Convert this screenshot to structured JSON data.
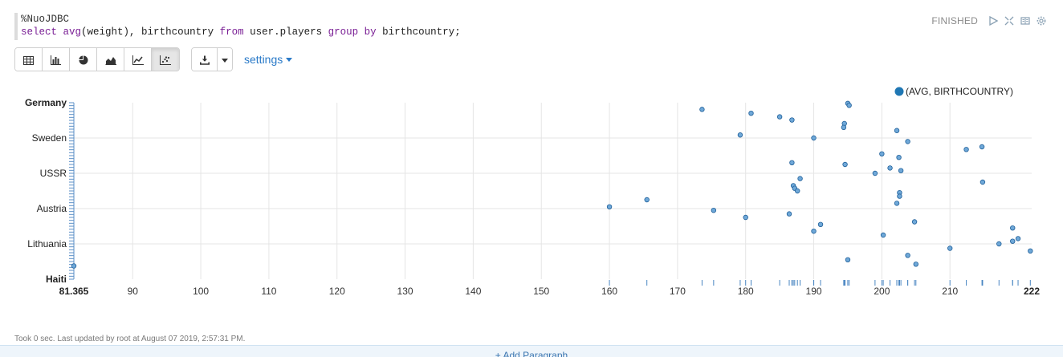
{
  "editor": {
    "magic": "%NuoJDBC",
    "tokens": [
      {
        "t": "select",
        "k": true
      },
      {
        "t": " ",
        "k": false
      },
      {
        "t": "avg",
        "k": true
      },
      {
        "t": "(weight), birthcountry ",
        "k": false
      },
      {
        "t": "from",
        "k": true
      },
      {
        "t": " user.players ",
        "k": false
      },
      {
        "t": "group",
        "k": true
      },
      {
        "t": " ",
        "k": false
      },
      {
        "t": "by",
        "k": true
      },
      {
        "t": " birthcountry;",
        "k": false
      }
    ]
  },
  "status": {
    "text": "FINISHED",
    "icons": [
      "run-icon",
      "expand-icon",
      "book-icon",
      "gear-icon"
    ]
  },
  "toolbar": {
    "views": [
      {
        "name": "table-view",
        "icon": "table-icon",
        "active": false
      },
      {
        "name": "bar-view",
        "icon": "bar-chart-icon",
        "active": false
      },
      {
        "name": "pie-view",
        "icon": "pie-chart-icon",
        "active": false
      },
      {
        "name": "area-view",
        "icon": "area-chart-icon",
        "active": false
      },
      {
        "name": "line-view",
        "icon": "line-chart-icon",
        "active": false
      },
      {
        "name": "scatter-view",
        "icon": "scatter-chart-icon",
        "active": true
      }
    ],
    "settings_label": "settings"
  },
  "chart_data": {
    "type": "scatter",
    "legend": {
      "label": "(AVG, BIRTHCOUNTRY)",
      "position": "top-right",
      "color": "#1f77b4"
    },
    "xlim": [
      81.365,
      222
    ],
    "x_ticks": [
      90,
      100,
      110,
      120,
      130,
      140,
      150,
      160,
      170,
      180,
      190,
      200,
      210
    ],
    "x_edge_labels": [
      "81.365",
      "222"
    ],
    "y_labels": [
      "Germany",
      "Sweden",
      "USSR",
      "Austria",
      "Lithuania",
      "Haiti"
    ],
    "grid": true,
    "points": [
      [
        195.0,
        0.4
      ],
      [
        195.2,
        1.5
      ],
      [
        173.6,
        3.8
      ],
      [
        180.8,
        6.0
      ],
      [
        185.0,
        8.0
      ],
      [
        186.8,
        9.8
      ],
      [
        194.5,
        11.8
      ],
      [
        194.4,
        14.0
      ],
      [
        202.2,
        15.8
      ],
      [
        179.2,
        18.3
      ],
      [
        190.0,
        20.0
      ],
      [
        203.8,
        22.0
      ],
      [
        214.7,
        25.0
      ],
      [
        212.4,
        26.5
      ],
      [
        200.0,
        29.0
      ],
      [
        202.5,
        31.0
      ],
      [
        186.8,
        34.0
      ],
      [
        194.6,
        35.0
      ],
      [
        201.2,
        37.0
      ],
      [
        202.8,
        38.5
      ],
      [
        199.0,
        40.0
      ],
      [
        188.0,
        43.0
      ],
      [
        214.8,
        45.0
      ],
      [
        187.0,
        47.0
      ],
      [
        187.2,
        48.5
      ],
      [
        187.6,
        50.0
      ],
      [
        202.6,
        51.0
      ],
      [
        202.6,
        53.0
      ],
      [
        165.5,
        55.0
      ],
      [
        202.2,
        57.0
      ],
      [
        160.0,
        59.0
      ],
      [
        175.3,
        61.0
      ],
      [
        186.4,
        63.0
      ],
      [
        180.0,
        65.0
      ],
      [
        204.8,
        67.5
      ],
      [
        191.0,
        69.0
      ],
      [
        219.2,
        71.0
      ],
      [
        190.0,
        72.8
      ],
      [
        200.2,
        75.0
      ],
      [
        220.0,
        77.0
      ],
      [
        219.2,
        78.5
      ],
      [
        217.2,
        80.0
      ],
      [
        210.0,
        82.5
      ],
      [
        221.8,
        84.0
      ],
      [
        203.8,
        86.5
      ],
      [
        195.0,
        89.0
      ],
      [
        205.0,
        91.5
      ],
      [
        81.365,
        92.5
      ]
    ]
  },
  "footer": {
    "took": "Took 0 sec. Last updated by root at August 07 2019, 2:57:31 PM."
  },
  "add_paragraph": "+ Add Paragraph"
}
